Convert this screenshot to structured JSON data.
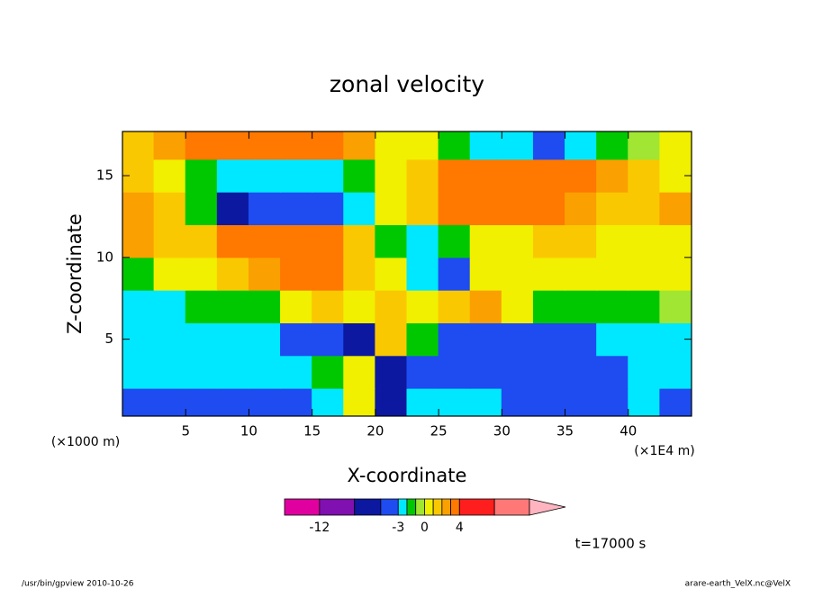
{
  "chart_data": {
    "type": "contour",
    "title": "zonal velocity",
    "xlabel": "X-coordinate",
    "ylabel": "Z-coordinate",
    "xunit": "(×1E4 m)",
    "yunit": "(×1000 m)",
    "annotation": "t=17000 s",
    "footer_left": "/usr/bin/gpview  2010-10-26",
    "footer_right": "arare-earth_VelX.nc@VelX",
    "xlim": [
      0,
      45
    ],
    "ylim": [
      0.3,
      17.7
    ],
    "xticks": [
      5,
      10,
      15,
      20,
      25,
      30,
      35,
      40
    ],
    "yticks": [
      5,
      10,
      15
    ],
    "x": [
      1.25,
      3.75,
      6.25,
      8.75,
      11.25,
      13.75,
      16.25,
      18.75,
      21.25,
      23.75,
      26.25,
      28.75,
      31.25,
      33.75,
      36.25,
      38.75,
      41.25,
      43.75
    ],
    "y": [
      1,
      3,
      5,
      7,
      9,
      11,
      13,
      15,
      17
    ],
    "z": [
      [
        -4,
        -4,
        -4,
        -4,
        -4,
        -4,
        -2.5,
        0.5,
        -6,
        -2.5,
        -2.5,
        -2.5,
        -4,
        -4,
        -4,
        -4,
        -2.5,
        -4
      ],
      [
        -2.5,
        -2.5,
        -2.5,
        -2.5,
        -2.5,
        -2.5,
        -1.5,
        0.5,
        -6,
        -4,
        -4,
        -4,
        -4,
        -4,
        -4,
        -4,
        -2.5,
        -2.5
      ],
      [
        -2.5,
        -2.5,
        -2.5,
        -2.5,
        -2.5,
        -4,
        -4,
        -6,
        1.5,
        -1.5,
        -4,
        -4,
        -4,
        -4,
        -4,
        -2.5,
        -2.5,
        -2.5
      ],
      [
        -2.5,
        -2.5,
        -1.5,
        -1.5,
        -1.5,
        0.5,
        1.5,
        0.5,
        1.5,
        0.5,
        1.5,
        2.5,
        0.5,
        -1.5,
        -1.5,
        -1.5,
        -1.5,
        -0.5
      ],
      [
        -1.5,
        0.5,
        0.5,
        1.5,
        2,
        3,
        3.5,
        1.5,
        0.5,
        -2.5,
        -4,
        0.5,
        0.5,
        0.5,
        0.5,
        0.5,
        0.5,
        0.5
      ],
      [
        2,
        1.5,
        1.5,
        3.5,
        3.5,
        3.5,
        3,
        1.5,
        -1.5,
        -2.5,
        -1.5,
        0.5,
        0.5,
        1.5,
        1.5,
        0.5,
        0.5,
        0.5
      ],
      [
        2.5,
        1.5,
        -1.5,
        -6,
        -4,
        -4,
        -4,
        -2.5,
        0.5,
        1.5,
        3.5,
        3.5,
        3.8,
        3.5,
        2.5,
        1.5,
        1.5,
        2.5
      ],
      [
        1.5,
        0.5,
        -1.5,
        -2.5,
        -2.5,
        -2.5,
        -2.5,
        -1.5,
        0.5,
        1.5,
        3.5,
        3.5,
        3.5,
        3.5,
        3.5,
        2.5,
        1.5,
        0.5
      ],
      [
        1.5,
        2.5,
        3.5,
        3.5,
        3.5,
        3.8,
        3.5,
        2.5,
        0.5,
        0.5,
        -1.5,
        -2.5,
        -2.5,
        -3.5,
        -2.5,
        -1.5,
        -0.5,
        0.5
      ]
    ],
    "levels": [
      -16,
      -12,
      -8,
      -5,
      -3,
      -2,
      -1,
      0,
      1,
      2,
      3,
      4,
      8,
      12
    ],
    "colors": [
      "#e000a0",
      "#8010b0",
      "#0c18a0",
      "#1e4cf0",
      "#00e8ff",
      "#00c800",
      "#a0e632",
      "#f0f000",
      "#fac800",
      "#faa000",
      "#ff7800",
      "#ff1e1e",
      "#ff7878",
      "#ffb4c0"
    ],
    "colorbar_ticks": [
      -12,
      -3,
      0,
      4
    ]
  }
}
